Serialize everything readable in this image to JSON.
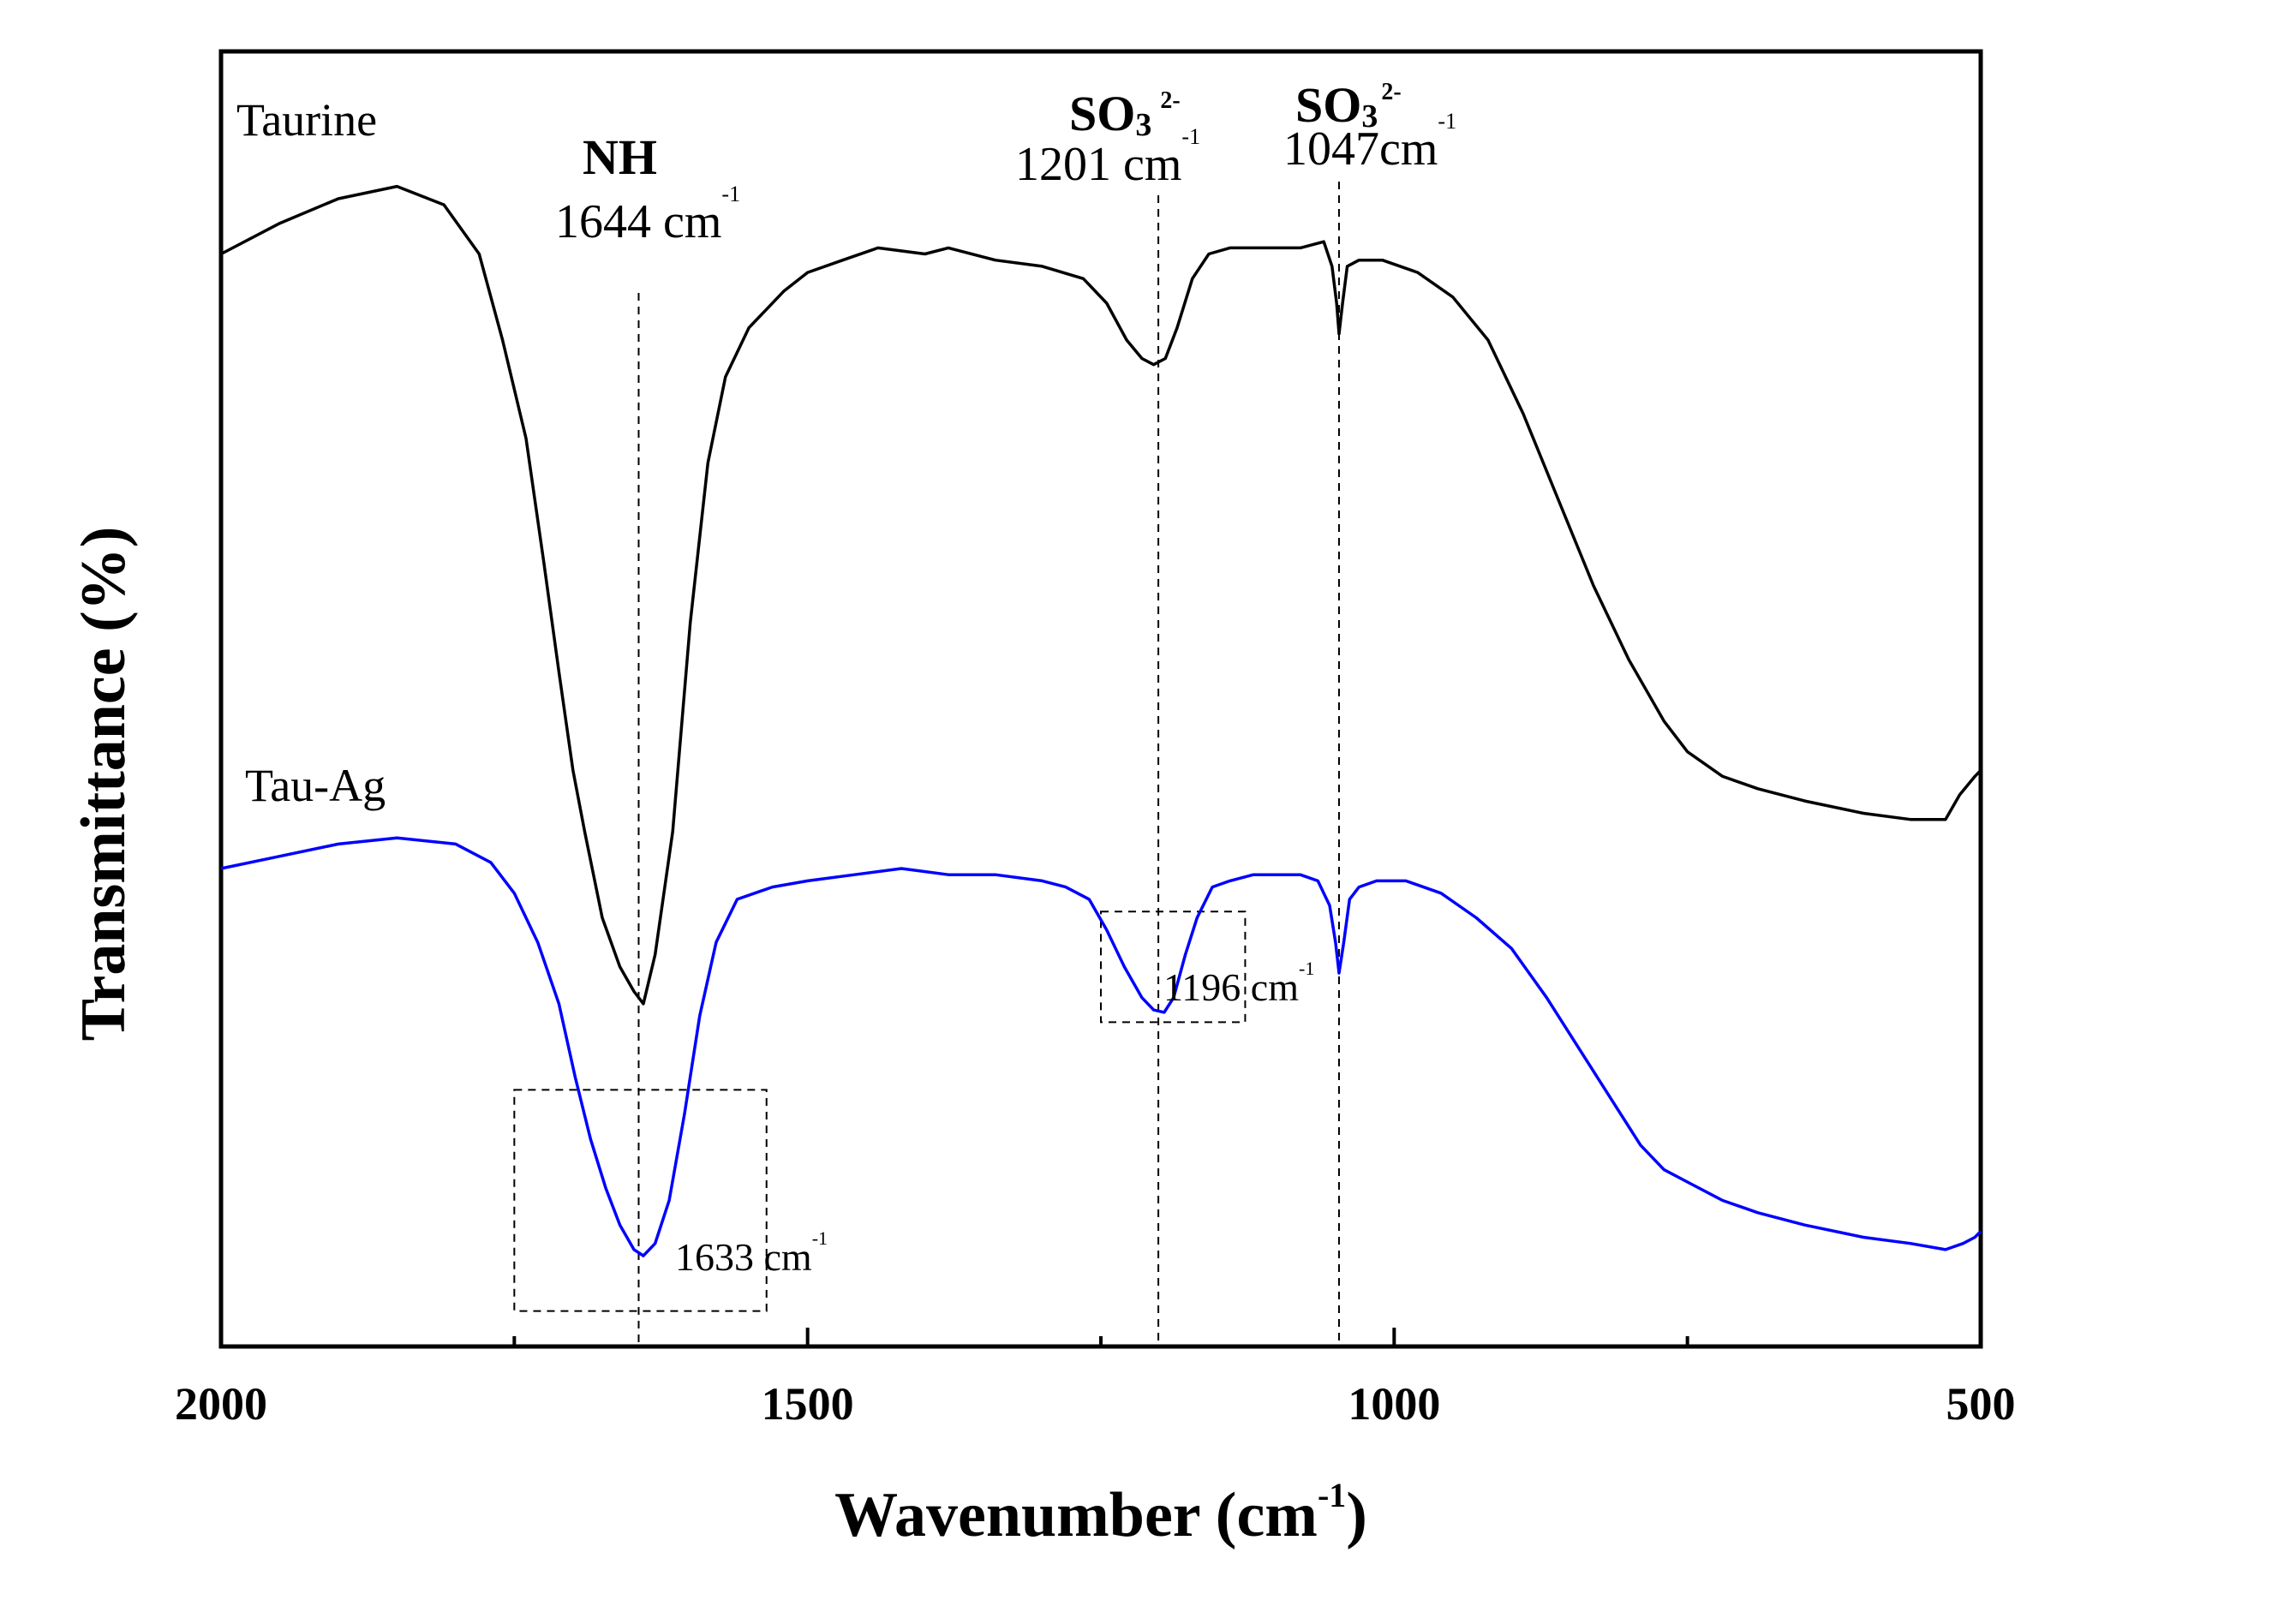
{
  "chart_data": {
    "type": "line",
    "title": "",
    "xlabel_main": "Wavenumber (cm",
    "xlabel_sup": "-1",
    "xlabel_close": ")",
    "ylabel": "Transmittance (%)",
    "xlim": [
      2000,
      500
    ],
    "ylim": [
      0,
      100
    ],
    "x_ticks": [
      2000,
      1500,
      1000,
      500
    ],
    "x_minor_ticks": [
      1750,
      1250,
      750
    ],
    "series": [
      {
        "name": "Taurine",
        "color": "#000000",
        "points": [
          [
            2000,
            87
          ],
          [
            1950,
            89.5
          ],
          [
            1900,
            91.5
          ],
          [
            1850,
            92.5
          ],
          [
            1810,
            91
          ],
          [
            1780,
            87
          ],
          [
            1760,
            80
          ],
          [
            1740,
            72
          ],
          [
            1725,
            62
          ],
          [
            1712,
            53
          ],
          [
            1700,
            45
          ],
          [
            1690,
            40
          ],
          [
            1675,
            33
          ],
          [
            1660,
            29
          ],
          [
            1648,
            27
          ],
          [
            1640,
            26
          ],
          [
            1630,
            30
          ],
          [
            1615,
            40
          ],
          [
            1600,
            57
          ],
          [
            1585,
            70
          ],
          [
            1570,
            77
          ],
          [
            1550,
            81
          ],
          [
            1520,
            84
          ],
          [
            1500,
            85.5
          ],
          [
            1470,
            86.5
          ],
          [
            1440,
            87.5
          ],
          [
            1400,
            87
          ],
          [
            1380,
            87.5
          ],
          [
            1340,
            86.5
          ],
          [
            1300,
            86
          ],
          [
            1265,
            85
          ],
          [
            1245,
            83
          ],
          [
            1228,
            80
          ],
          [
            1215,
            78.5
          ],
          [
            1205,
            78
          ],
          [
            1195,
            78.5
          ],
          [
            1185,
            81
          ],
          [
            1172,
            85
          ],
          [
            1158,
            87
          ],
          [
            1140,
            87.5
          ],
          [
            1120,
            87.5
          ],
          [
            1100,
            87.5
          ],
          [
            1080,
            87.5
          ],
          [
            1060,
            88
          ],
          [
            1053,
            86
          ],
          [
            1049,
            83
          ],
          [
            1047,
            80.5
          ],
          [
            1044,
            83
          ],
          [
            1040,
            86
          ],
          [
            1030,
            86.5
          ],
          [
            1010,
            86.5
          ],
          [
            980,
            85.5
          ],
          [
            950,
            83.5
          ],
          [
            920,
            80
          ],
          [
            890,
            74
          ],
          [
            860,
            67
          ],
          [
            830,
            60
          ],
          [
            800,
            54
          ],
          [
            770,
            49
          ],
          [
            750,
            46.5
          ],
          [
            720,
            44.5
          ],
          [
            690,
            43.5
          ],
          [
            650,
            42.5
          ],
          [
            600,
            41.5
          ],
          [
            560,
            41
          ],
          [
            530,
            41
          ],
          [
            518,
            43
          ],
          [
            505,
            44.5
          ],
          [
            500,
            45
          ]
        ]
      },
      {
        "name": "Tau-Ag",
        "color": "#0000ff",
        "points": [
          [
            2000,
            37
          ],
          [
            1950,
            38
          ],
          [
            1900,
            39
          ],
          [
            1850,
            39.5
          ],
          [
            1800,
            39
          ],
          [
            1770,
            37.5
          ],
          [
            1750,
            35
          ],
          [
            1730,
            31
          ],
          [
            1712,
            26
          ],
          [
            1698,
            20
          ],
          [
            1685,
            15
          ],
          [
            1672,
            11
          ],
          [
            1660,
            8
          ],
          [
            1648,
            6
          ],
          [
            1640,
            5.5
          ],
          [
            1630,
            6.5
          ],
          [
            1618,
            10
          ],
          [
            1605,
            17
          ],
          [
            1592,
            25
          ],
          [
            1578,
            31
          ],
          [
            1560,
            34.5
          ],
          [
            1530,
            35.5
          ],
          [
            1500,
            36
          ],
          [
            1460,
            36.5
          ],
          [
            1420,
            37
          ],
          [
            1380,
            36.5
          ],
          [
            1340,
            36.5
          ],
          [
            1300,
            36
          ],
          [
            1280,
            35.5
          ],
          [
            1260,
            34.5
          ],
          [
            1245,
            32
          ],
          [
            1230,
            29
          ],
          [
            1215,
            26.5
          ],
          [
            1205,
            25.5
          ],
          [
            1196,
            25.3
          ],
          [
            1188,
            26.5
          ],
          [
            1178,
            30
          ],
          [
            1168,
            33
          ],
          [
            1155,
            35.5
          ],
          [
            1140,
            36
          ],
          [
            1120,
            36.5
          ],
          [
            1100,
            36.5
          ],
          [
            1080,
            36.5
          ],
          [
            1065,
            36
          ],
          [
            1055,
            34
          ],
          [
            1050,
            31
          ],
          [
            1047,
            28.5
          ],
          [
            1043,
            31
          ],
          [
            1038,
            34.5
          ],
          [
            1030,
            35.5
          ],
          [
            1015,
            36
          ],
          [
            990,
            36
          ],
          [
            960,
            35
          ],
          [
            930,
            33
          ],
          [
            900,
            30.5
          ],
          [
            870,
            26.5
          ],
          [
            840,
            22
          ],
          [
            810,
            17.5
          ],
          [
            790,
            14.5
          ],
          [
            770,
            12.5
          ],
          [
            750,
            11.5
          ],
          [
            720,
            10
          ],
          [
            690,
            9
          ],
          [
            650,
            8
          ],
          [
            600,
            7
          ],
          [
            560,
            6.5
          ],
          [
            530,
            6
          ],
          [
            515,
            6.5
          ],
          [
            505,
            7
          ],
          [
            500,
            7.5
          ]
        ]
      }
    ],
    "series_labels": [
      {
        "text": "Taurine",
        "x": 1985,
        "y": 92
      },
      {
        "text": "Tau-Ag",
        "x": 1980,
        "y": 42
      }
    ],
    "annotations": {
      "nh": {
        "label": "NH",
        "value": "1644 cm",
        "sup": "-1",
        "wavenumber": 1644
      },
      "so3_1201": {
        "species": "SO",
        "sub": "3",
        "charge": "2-",
        "value": "1201 cm",
        "sup": "-1",
        "wavenumber": 1201
      },
      "so3_1047": {
        "species": "SO",
        "sub": "3",
        "charge": "2-",
        "value": "1047cm",
        "sup": "-1",
        "wavenumber": 1047
      },
      "box_1633": {
        "value": "1633 cm",
        "sup": "-1",
        "x_range": [
          1750,
          1535
        ],
        "y_range": [
          1,
          19
        ]
      },
      "box_1196": {
        "value": "1196 cm",
        "sup": "-1",
        "x_range": [
          1250,
          1127
        ],
        "y_range": [
          24.5,
          33.5
        ]
      }
    }
  }
}
